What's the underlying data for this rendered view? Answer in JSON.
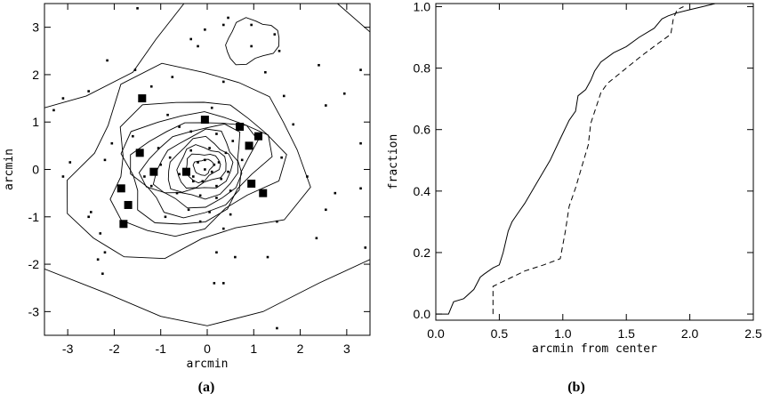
{
  "chart_data": [
    {
      "type": "scatter",
      "panel_label": "(a)",
      "xlabel": "arcmin",
      "ylabel": "arcmin",
      "xlim": [
        -3.5,
        3.5
      ],
      "ylim": [
        -3.5,
        3.5
      ],
      "xticks": [
        -3,
        -2,
        -1,
        0,
        1,
        2,
        3
      ],
      "yticks": [
        -3,
        -2,
        -1,
        0,
        1,
        2,
        3
      ],
      "grid": false,
      "series": [
        {
          "marker": "large-square",
          "points": [
            [
              -1.4,
              1.5
            ],
            [
              -0.05,
              1.05
            ],
            [
              0.7,
              0.9
            ],
            [
              1.1,
              0.7
            ],
            [
              0.9,
              0.5
            ],
            [
              -1.45,
              0.35
            ],
            [
              -1.15,
              -0.05
            ],
            [
              -0.45,
              -0.05
            ],
            [
              0.95,
              -0.3
            ],
            [
              -1.85,
              -0.4
            ],
            [
              1.2,
              -0.5
            ],
            [
              -1.7,
              -0.75
            ],
            [
              -1.8,
              -1.15
            ]
          ]
        },
        {
          "marker": "small-dot",
          "points": [
            [
              -1.5,
              3.4
            ],
            [
              0.45,
              3.2
            ],
            [
              0.35,
              3.05
            ],
            [
              0.95,
              3.05
            ],
            [
              -0.05,
              2.95
            ],
            [
              -0.35,
              2.75
            ],
            [
              1.45,
              2.85
            ],
            [
              -0.2,
              2.6
            ],
            [
              0.95,
              2.6
            ],
            [
              1.55,
              2.5
            ],
            [
              -2.15,
              2.3
            ],
            [
              -1.55,
              2.1
            ],
            [
              1.25,
              2.05
            ],
            [
              2.4,
              2.2
            ],
            [
              3.3,
              2.1
            ],
            [
              -0.75,
              1.95
            ],
            [
              0.35,
              1.85
            ],
            [
              -1.2,
              1.75
            ],
            [
              -3.1,
              1.5
            ],
            [
              -2.55,
              1.65
            ],
            [
              1.65,
              1.55
            ],
            [
              2.55,
              1.35
            ],
            [
              2.95,
              1.6
            ],
            [
              1.85,
              0.95
            ],
            [
              -3.3,
              1.25
            ],
            [
              -0.85,
              1.15
            ],
            [
              0.1,
              1.3
            ],
            [
              -0.6,
              0.9
            ],
            [
              -0.35,
              0.8
            ],
            [
              0.2,
              0.75
            ],
            [
              0.55,
              0.6
            ],
            [
              -1.6,
              0.7
            ],
            [
              -2.05,
              0.55
            ],
            [
              -1.05,
              0.45
            ],
            [
              -0.35,
              0.4
            ],
            [
              0.05,
              0.45
            ],
            [
              0.4,
              0.35
            ],
            [
              0.75,
              0.2
            ],
            [
              -0.8,
              0.25
            ],
            [
              -0.2,
              0.15
            ],
            [
              0.15,
              0.1
            ],
            [
              -0.05,
              0.0
            ],
            [
              0.1,
              -0.05
            ],
            [
              -0.3,
              -0.15
            ],
            [
              0.3,
              -0.2
            ],
            [
              -0.6,
              -0.1
            ],
            [
              -1.0,
              0.1
            ],
            [
              -1.35,
              -0.15
            ],
            [
              -2.2,
              0.2
            ],
            [
              -2.95,
              0.15
            ],
            [
              -3.1,
              -0.15
            ],
            [
              -1.2,
              -0.35
            ],
            [
              -0.65,
              -0.5
            ],
            [
              -0.15,
              -0.55
            ],
            [
              0.2,
              -0.6
            ],
            [
              0.5,
              -0.45
            ],
            [
              -0.4,
              -0.85
            ],
            [
              0.05,
              -0.9
            ],
            [
              0.5,
              -0.95
            ],
            [
              -0.9,
              -1.0
            ],
            [
              -0.15,
              -1.1
            ],
            [
              0.35,
              -1.25
            ],
            [
              -2.5,
              -0.9
            ],
            [
              -2.55,
              -1.0
            ],
            [
              -2.3,
              -1.35
            ],
            [
              -2.35,
              -1.9
            ],
            [
              -2.2,
              -1.75
            ],
            [
              0.2,
              -1.75
            ],
            [
              0.6,
              -1.85
            ],
            [
              1.3,
              -1.85
            ],
            [
              1.5,
              -1.1
            ],
            [
              2.55,
              -0.85
            ],
            [
              1.6,
              0.25
            ],
            [
              2.15,
              -0.15
            ],
            [
              2.75,
              -0.5
            ],
            [
              3.3,
              0.55
            ],
            [
              3.3,
              -0.4
            ],
            [
              3.4,
              -1.65
            ],
            [
              2.35,
              -1.45
            ],
            [
              -2.25,
              -2.2
            ],
            [
              0.15,
              -2.4
            ],
            [
              0.35,
              -2.4
            ],
            [
              1.5,
              -3.35
            ],
            [
              -0.3,
              -0.25
            ],
            [
              -0.4,
              0.0
            ],
            [
              0.2,
              -0.35
            ],
            [
              -0.1,
              -0.25
            ],
            [
              0.45,
              -0.05
            ],
            [
              -0.05,
              0.2
            ],
            [
              0.25,
              0.15
            ]
          ]
        }
      ]
    },
    {
      "type": "line",
      "panel_label": "(b)",
      "xlabel": "arcmin from center",
      "ylabel": "fraction",
      "xlim": [
        0,
        2.5
      ],
      "ylim": [
        -0.02,
        1.01
      ],
      "xticks": [
        0.0,
        0.5,
        1.0,
        1.5,
        2.0,
        2.5
      ],
      "yticks": [
        0.0,
        0.2,
        0.4,
        0.6,
        0.8,
        1.0
      ],
      "grid": false,
      "series": [
        {
          "style": "solid",
          "points": [
            [
              0.0,
              0.0
            ],
            [
              0.1,
              0.0
            ],
            [
              0.14,
              0.04
            ],
            [
              0.22,
              0.05
            ],
            [
              0.3,
              0.08
            ],
            [
              0.35,
              0.12
            ],
            [
              0.38,
              0.13
            ],
            [
              0.45,
              0.15
            ],
            [
              0.5,
              0.16
            ],
            [
              0.53,
              0.2
            ],
            [
              0.57,
              0.27
            ],
            [
              0.6,
              0.3
            ],
            [
              0.65,
              0.33
            ],
            [
              0.7,
              0.36
            ],
            [
              0.8,
              0.43
            ],
            [
              0.9,
              0.5
            ],
            [
              0.98,
              0.57
            ],
            [
              1.05,
              0.63
            ],
            [
              1.1,
              0.66
            ],
            [
              1.12,
              0.71
            ],
            [
              1.18,
              0.73
            ],
            [
              1.22,
              0.76
            ],
            [
              1.25,
              0.79
            ],
            [
              1.3,
              0.82
            ],
            [
              1.4,
              0.85
            ],
            [
              1.5,
              0.87
            ],
            [
              1.6,
              0.9
            ],
            [
              1.72,
              0.93
            ],
            [
              1.78,
              0.96
            ],
            [
              1.83,
              0.97
            ],
            [
              1.9,
              0.98
            ],
            [
              2.0,
              0.99
            ],
            [
              2.1,
              1.0
            ],
            [
              2.2,
              1.01
            ]
          ]
        },
        {
          "style": "dashed",
          "points": [
            [
              0.45,
              0.0
            ],
            [
              0.45,
              0.09
            ],
            [
              0.55,
              0.11
            ],
            [
              0.7,
              0.14
            ],
            [
              0.85,
              0.16
            ],
            [
              0.98,
              0.18
            ],
            [
              1.02,
              0.27
            ],
            [
              1.05,
              0.35
            ],
            [
              1.1,
              0.41
            ],
            [
              1.15,
              0.48
            ],
            [
              1.2,
              0.55
            ],
            [
              1.22,
              0.62
            ],
            [
              1.26,
              0.67
            ],
            [
              1.3,
              0.72
            ],
            [
              1.35,
              0.75
            ],
            [
              1.5,
              0.8
            ],
            [
              1.62,
              0.84
            ],
            [
              1.75,
              0.88
            ],
            [
              1.85,
              0.91
            ],
            [
              1.87,
              0.96
            ],
            [
              1.9,
              0.99
            ],
            [
              1.95,
              1.0
            ]
          ]
        }
      ]
    }
  ]
}
